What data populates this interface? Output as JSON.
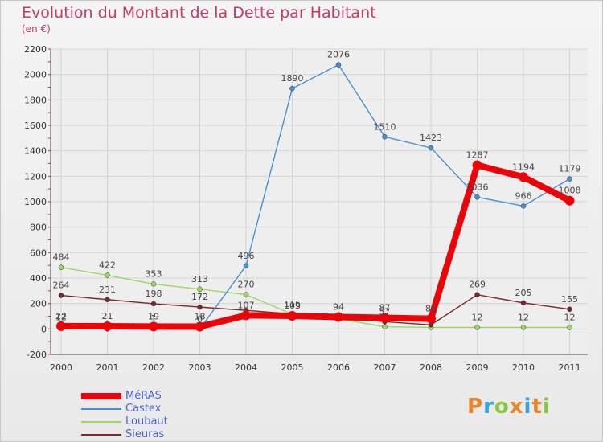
{
  "header": {
    "title": "Evolution du Montant de la Dette par Habitant",
    "unit": "(en €)"
  },
  "logo": {
    "letters": [
      "P",
      "r",
      "o",
      "x",
      "i",
      "t",
      "i"
    ],
    "colors": [
      "#e8862a",
      "#3aa0d8",
      "#8cc63e",
      "#e8862a",
      "#3aa0d8",
      "#e8862a",
      "#8cc63e"
    ]
  },
  "chart_data": {
    "type": "line",
    "x": [
      "2000",
      "2001",
      "2002",
      "2003",
      "2004",
      "2005",
      "2006",
      "2007",
      "2008",
      "2009",
      "2010",
      "2011"
    ],
    "ylim": [
      -200,
      2200
    ],
    "yticks": [
      "-200",
      "0",
      "200",
      "400",
      "600",
      "800",
      "1000",
      "1200",
      "1400",
      "1600",
      "1800",
      "2000",
      "2200"
    ],
    "grid": true,
    "legend_position": "bottom-left",
    "series": [
      {
        "name": "Loubaut",
        "color": "#99d863",
        "values": [
          484,
          422,
          353,
          313,
          270,
          116,
          80,
          17,
          12,
          12,
          12,
          12
        ],
        "labels": [
          "484",
          "422",
          "353",
          "313",
          "270",
          "116",
          "",
          "",
          "",
          "12",
          "12",
          "12"
        ]
      },
      {
        "name": "Sieuras",
        "color": "#7a2a2a",
        "values": [
          264,
          231,
          198,
          172,
          146,
          118,
          94,
          57,
          32,
          269,
          205,
          155
        ],
        "labels": [
          "264",
          "231",
          "198",
          "172",
          "",
          "",
          "",
          "57",
          "",
          "269",
          "205",
          "155"
        ]
      },
      {
        "name": "Castex",
        "color": "#4a90cc",
        "values": [
          12,
          0,
          1,
          0,
          496,
          1890,
          2076,
          1510,
          1423,
          1036,
          966,
          1179
        ],
        "labels": [
          "12",
          "",
          "1",
          "0",
          "496",
          "1890",
          "2076",
          "1510",
          "1423",
          "1036",
          "966",
          "1179"
        ]
      },
      {
        "name": "MéRAS",
        "color": "#e8060a",
        "values": [
          22,
          21,
          19,
          18,
          107,
          103,
          94,
          87,
          80,
          1287,
          1194,
          1008
        ],
        "labels": [
          "22",
          "21",
          "19",
          "18",
          "107",
          "103",
          "94",
          "87",
          "80",
          "1287",
          "1194",
          "1008"
        ]
      }
    ],
    "legend": [
      "MéRAS",
      "Castex",
      "Loubaut",
      "Sieuras"
    ]
  }
}
